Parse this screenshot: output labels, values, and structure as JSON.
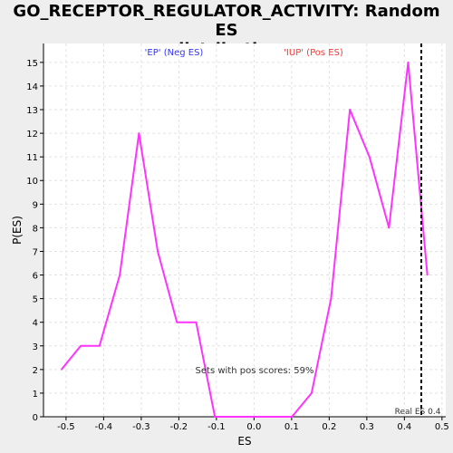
{
  "chart_data": {
    "type": "line",
    "title": [
      "GO_RECEPTOR_REGULATOR_ACTIVITY: Random ES",
      "distribution"
    ],
    "xlabel": "ES",
    "ylabel": "P(ES)",
    "xlim": [
      -0.56,
      0.51
    ],
    "ylim": [
      0,
      15.8
    ],
    "xticks": [
      "-0.5",
      "-0.4",
      "-0.3",
      "-0.2",
      "-0.1",
      "0.0",
      "0.1",
      "0.2",
      "0.3",
      "0.4",
      "0.5"
    ],
    "xtick_values": [
      -0.5,
      -0.4,
      -0.3,
      -0.2,
      -0.1,
      0.0,
      0.1,
      0.2,
      0.3,
      0.4,
      0.5
    ],
    "yticks": [
      "0",
      "1",
      "2",
      "3",
      "4",
      "5",
      "6",
      "7",
      "8",
      "9",
      "10",
      "11",
      "12",
      "13",
      "14",
      "15"
    ],
    "ytick_values": [
      0,
      1,
      2,
      3,
      4,
      5,
      6,
      7,
      8,
      9,
      10,
      11,
      12,
      13,
      14,
      15
    ],
    "grid": true,
    "series": [
      {
        "color": "#ff33ff",
        "x": [
          -0.512,
          -0.461,
          -0.411,
          -0.357,
          -0.306,
          -0.256,
          -0.205,
          -0.154,
          -0.104,
          -0.052,
          0.0,
          0.05,
          0.101,
          0.153,
          0.205,
          0.255,
          0.307,
          0.359,
          0.41,
          0.461
        ],
        "y": [
          2,
          3,
          3,
          6,
          12,
          7,
          4,
          4,
          0,
          0,
          0,
          0,
          0,
          1,
          5,
          13,
          11,
          8,
          15,
          6
        ]
      }
    ],
    "real_es": {
      "x": 0.445,
      "label": "Real ES 0.4",
      "color": "#000000"
    },
    "annotations": [
      {
        "text": "'EP' (Neg ES)",
        "color": "#3333ff"
      },
      {
        "text": "'IUP' (Pos ES)",
        "color": "#ff3333"
      },
      {
        "text": "Sets with pos scores: 59%",
        "color": "#333333"
      }
    ]
  }
}
